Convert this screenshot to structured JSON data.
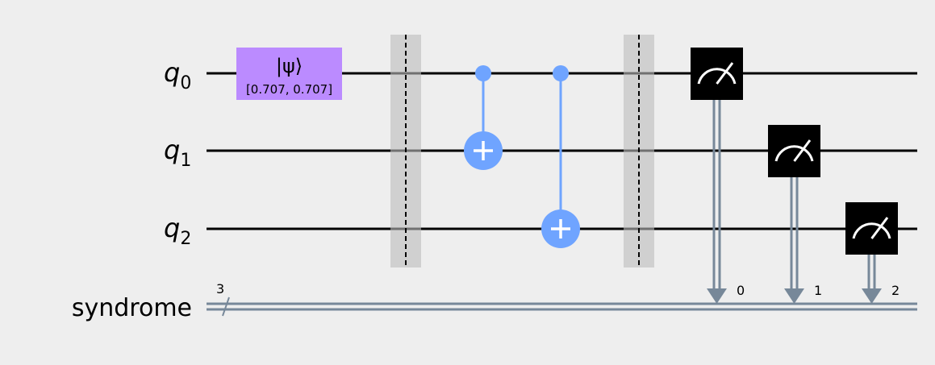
{
  "colors": {
    "background": "#eeeeee",
    "wire": "#000000",
    "classical_wire": "#778899",
    "init_gate": "#bb8bff",
    "cnot": "#6fa4ff",
    "barrier": "#bdbdbd",
    "measure": "#000000"
  },
  "qubits": [
    {
      "name": "q",
      "index": "0"
    },
    {
      "name": "q",
      "index": "1"
    },
    {
      "name": "q",
      "index": "2"
    }
  ],
  "classical_register": {
    "name": "syndrome",
    "size": "3"
  },
  "init_gate": {
    "label": "|ψ⟩",
    "params": "[0.707, 0.707]"
  },
  "cnots": [
    {
      "control": "q0",
      "target": "q1"
    },
    {
      "control": "q0",
      "target": "q2"
    }
  ],
  "measurements": [
    {
      "qubit": "q0",
      "bit": "0"
    },
    {
      "qubit": "q1",
      "bit": "1"
    },
    {
      "qubit": "q2",
      "bit": "2"
    }
  ],
  "icons": [
    "measure-icon",
    "cnot-target-icon",
    "barrier-icon"
  ]
}
